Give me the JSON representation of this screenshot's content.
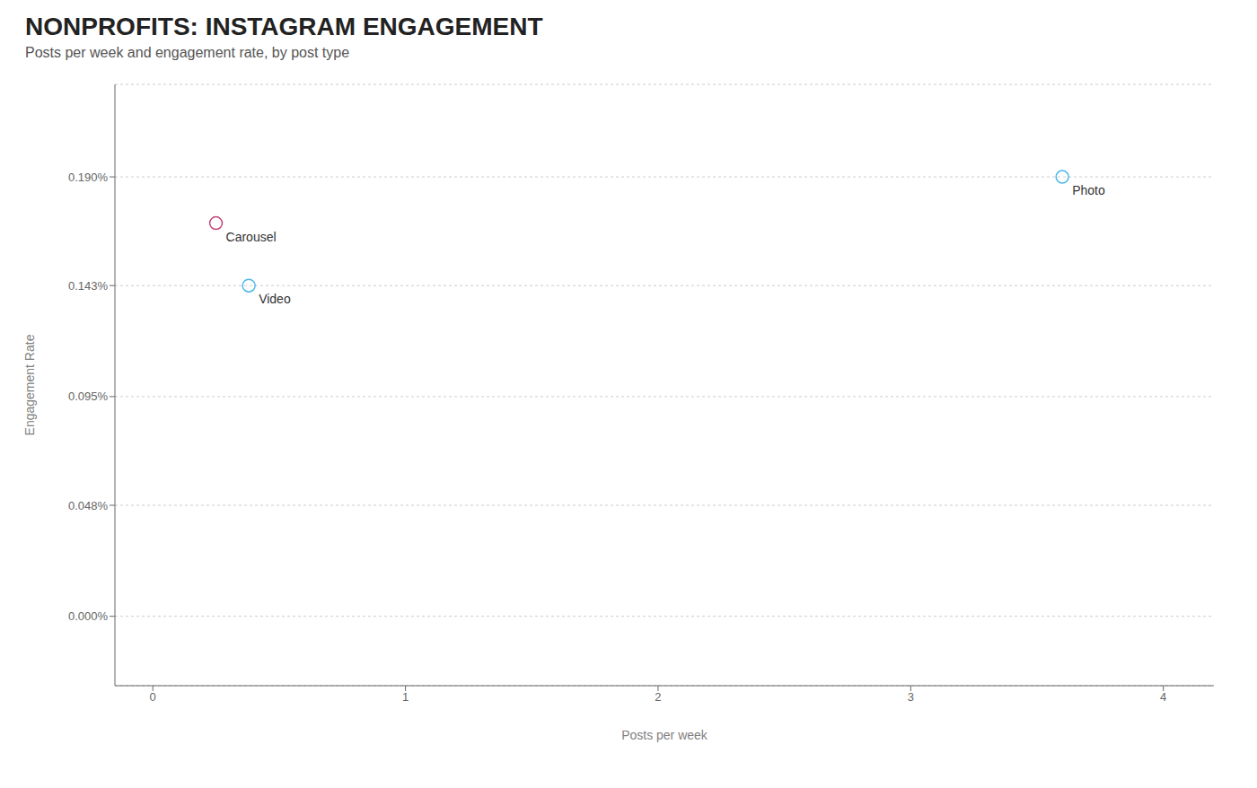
{
  "chart_data": {
    "type": "scatter",
    "title": "NONPROFITS: INSTAGRAM ENGAGEMENT",
    "subtitle": "Posts per week and engagement rate, by post type",
    "xlabel": "Posts per week",
    "ylabel": "Engagement Rate",
    "x": [
      0.25,
      0.38,
      3.6
    ],
    "values": [
      0.0017,
      0.00143,
      0.0019
    ],
    "annotations": [
      "Carousel",
      "Video",
      "Photo"
    ],
    "colors": [
      "#c0467a",
      "#4db8e8",
      "#4db8e8"
    ],
    "marker": "circle-open",
    "xlim": [
      -0.15,
      4.2
    ],
    "ylim": [
      -0.0003,
      0.0023
    ],
    "xticks": [
      0,
      1,
      2,
      3,
      4
    ],
    "yticks": [
      {
        "value": 0.0,
        "label": "0.000%"
      },
      {
        "value": 0.00048,
        "label": "0.048%"
      },
      {
        "value": 0.00095,
        "label": "0.095%"
      },
      {
        "value": 0.00143,
        "label": "0.143%"
      },
      {
        "value": 0.0019,
        "label": "0.190%"
      }
    ],
    "grid": "y"
  }
}
